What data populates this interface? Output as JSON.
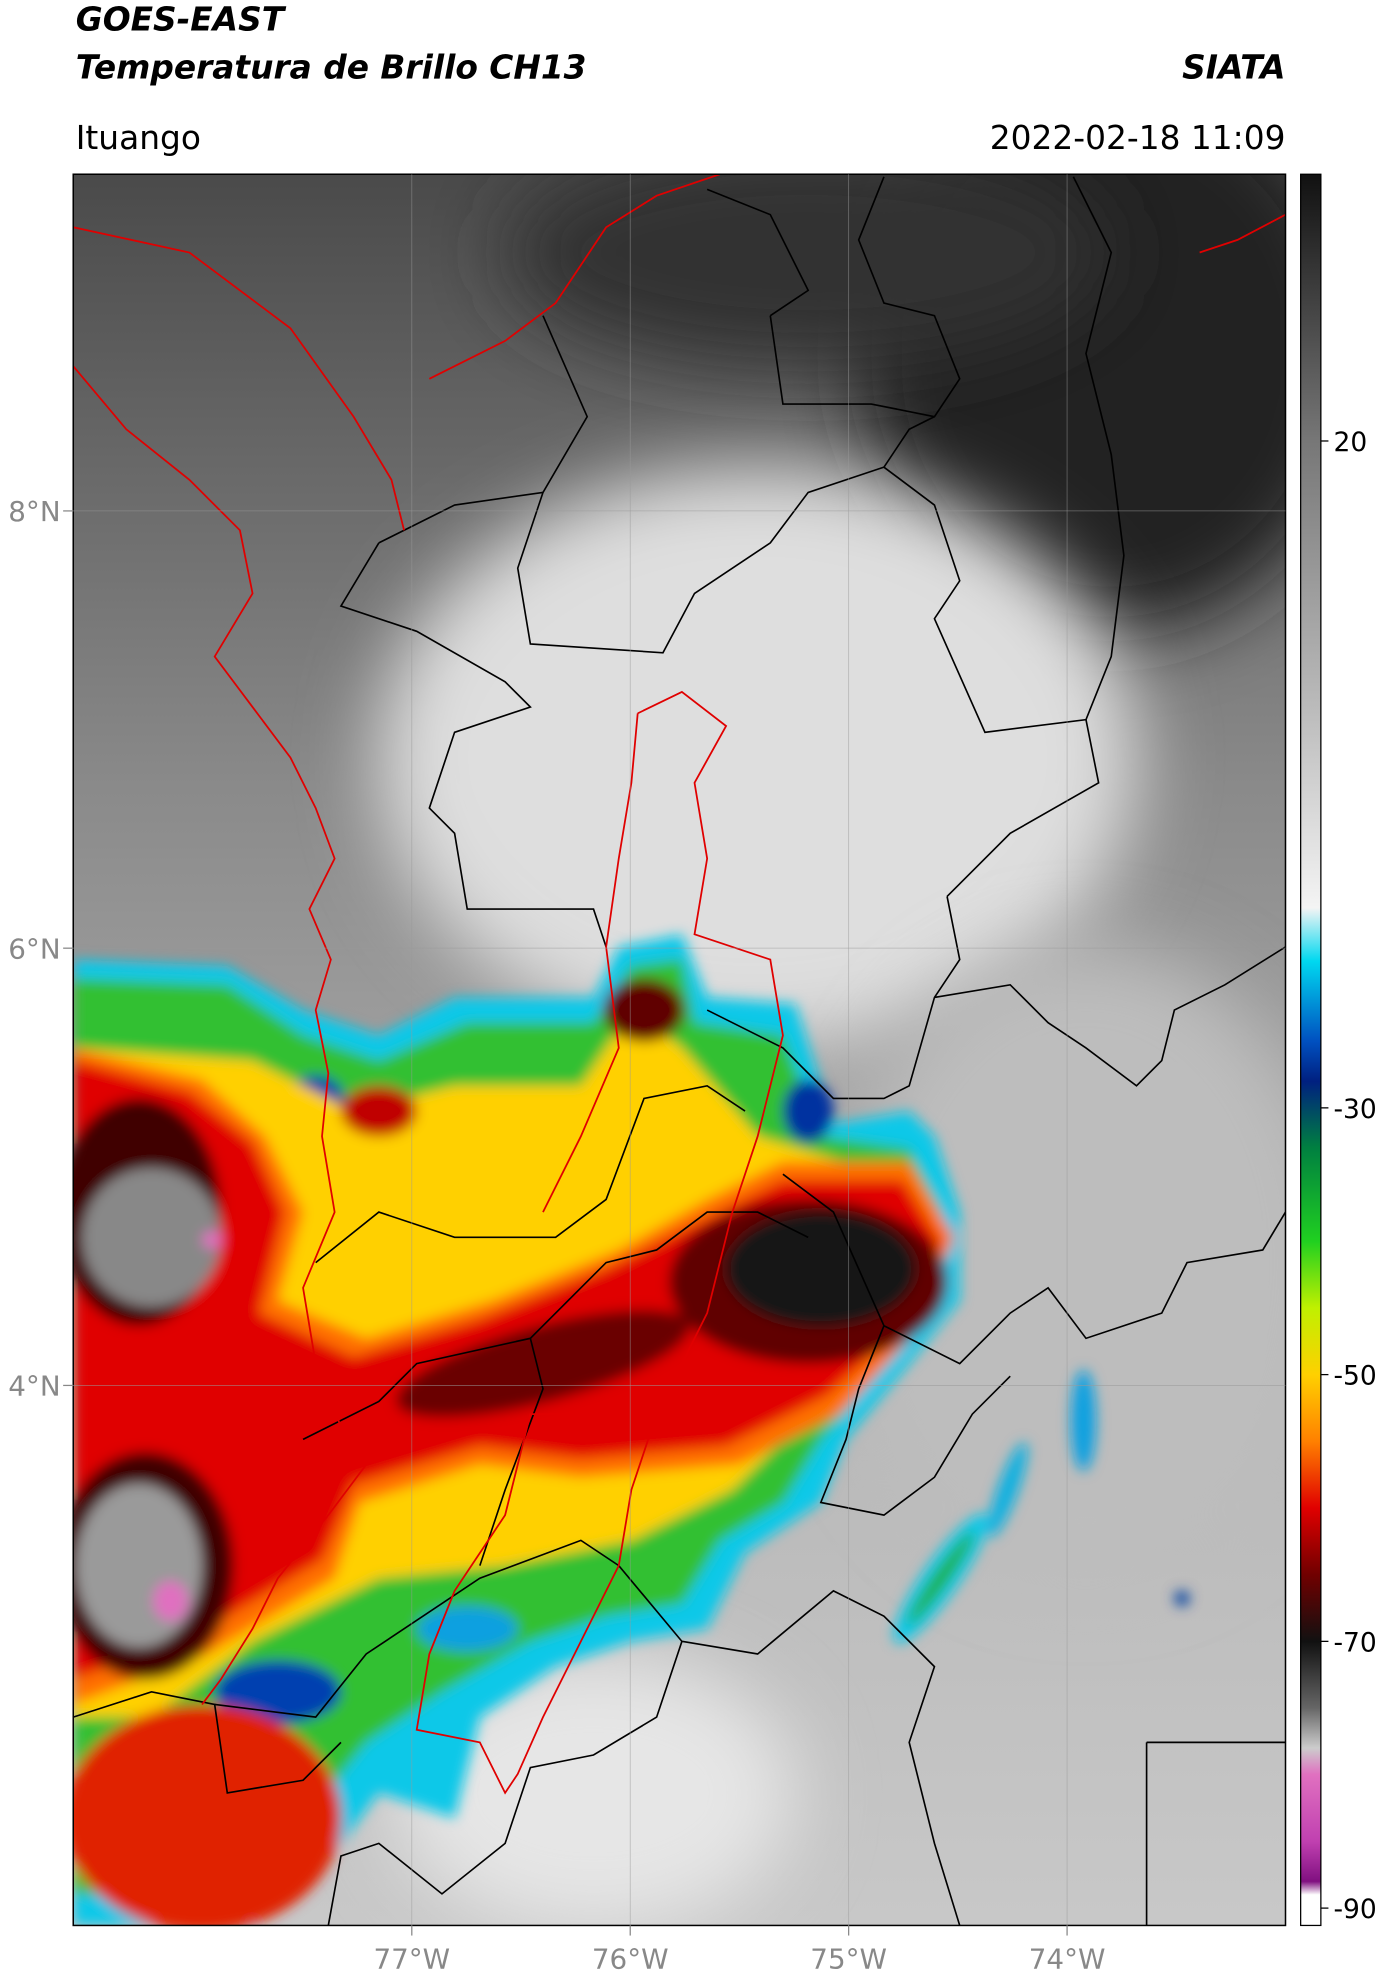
{
  "header": {
    "title": "GOES-EAST",
    "subtitle": "Temperatura de Brillo CH13",
    "source": "SIATA",
    "location": "Ituango",
    "datetime": "2022-02-18 11:09"
  },
  "map": {
    "xlim": [
      -78.55,
      -73.0
    ],
    "ylim": [
      1.53,
      9.54
    ],
    "xticks": [
      {
        "value": -77,
        "label": "77°W"
      },
      {
        "value": -76,
        "label": "76°W"
      },
      {
        "value": -75,
        "label": "75°W"
      },
      {
        "value": -74,
        "label": "74°W"
      }
    ],
    "yticks": [
      {
        "value": 8,
        "label": "8°N"
      },
      {
        "value": 6,
        "label": "6°N"
      },
      {
        "value": 4,
        "label": "4°N"
      }
    ],
    "grid": true
  },
  "colorbar": {
    "lim": [
      -91.3,
      40
    ],
    "ticks": [
      20,
      -30,
      -50,
      -70,
      -90
    ],
    "stops": [
      {
        "value": 40,
        "color": "#111111"
      },
      {
        "value": 20,
        "color": "#777777"
      },
      {
        "value": 0,
        "color": "#bbbbbb"
      },
      {
        "value": -15,
        "color": "#f4f4f4"
      },
      {
        "value": -19,
        "color": "#00d8f0"
      },
      {
        "value": -25,
        "color": "#0050c0"
      },
      {
        "value": -28,
        "color": "#002080"
      },
      {
        "value": -33,
        "color": "#008040"
      },
      {
        "value": -40,
        "color": "#20d020"
      },
      {
        "value": -45,
        "color": "#c0f000"
      },
      {
        "value": -50,
        "color": "#ffd000"
      },
      {
        "value": -55,
        "color": "#ff8000"
      },
      {
        "value": -60,
        "color": "#e00000"
      },
      {
        "value": -65,
        "color": "#700000"
      },
      {
        "value": -70,
        "color": "#111111"
      },
      {
        "value": -75,
        "color": "#666666"
      },
      {
        "value": -78,
        "color": "#cccccc"
      },
      {
        "value": -80,
        "color": "#e070c0"
      },
      {
        "value": -85,
        "color": "#c040b0"
      },
      {
        "value": -88,
        "color": "#801080"
      },
      {
        "value": -89,
        "color": "#ffffff"
      },
      {
        "value": -91.3,
        "color": "#ffffff"
      }
    ]
  }
}
